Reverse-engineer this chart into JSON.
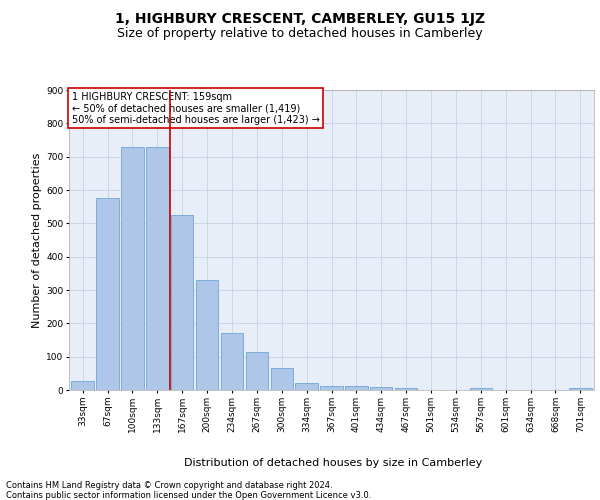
{
  "title": "1, HIGHBURY CRESCENT, CAMBERLEY, GU15 1JZ",
  "subtitle": "Size of property relative to detached houses in Camberley",
  "xlabel": "Distribution of detached houses by size in Camberley",
  "ylabel": "Number of detached properties",
  "bar_labels": [
    "33sqm",
    "67sqm",
    "100sqm",
    "133sqm",
    "167sqm",
    "200sqm",
    "234sqm",
    "267sqm",
    "300sqm",
    "334sqm",
    "367sqm",
    "401sqm",
    "434sqm",
    "467sqm",
    "501sqm",
    "534sqm",
    "567sqm",
    "601sqm",
    "634sqm",
    "668sqm",
    "701sqm"
  ],
  "bar_values": [
    27,
    575,
    730,
    730,
    525,
    330,
    170,
    115,
    65,
    22,
    13,
    12,
    8,
    5,
    0,
    0,
    5,
    0,
    0,
    0,
    5
  ],
  "bar_color": "#aec6e8",
  "bar_edge_color": "#5b9bd5",
  "vline_color": "#cc0000",
  "ylim": [
    0,
    900
  ],
  "yticks": [
    0,
    100,
    200,
    300,
    400,
    500,
    600,
    700,
    800,
    900
  ],
  "annotation_text": "1 HIGHBURY CRESCENT: 159sqm\n← 50% of detached houses are smaller (1,419)\n50% of semi-detached houses are larger (1,423) →",
  "annotation_box_color": "#ffffff",
  "annotation_box_edge_color": "#cc0000",
  "footer_line1": "Contains HM Land Registry data © Crown copyright and database right 2024.",
  "footer_line2": "Contains public sector information licensed under the Open Government Licence v3.0.",
  "plot_bg_color": "#e8eef8",
  "grid_color": "#c0cce0",
  "title_fontsize": 10,
  "subtitle_fontsize": 9,
  "axis_label_fontsize": 8,
  "tick_fontsize": 6.5,
  "annotation_fontsize": 7,
  "footer_fontsize": 6
}
